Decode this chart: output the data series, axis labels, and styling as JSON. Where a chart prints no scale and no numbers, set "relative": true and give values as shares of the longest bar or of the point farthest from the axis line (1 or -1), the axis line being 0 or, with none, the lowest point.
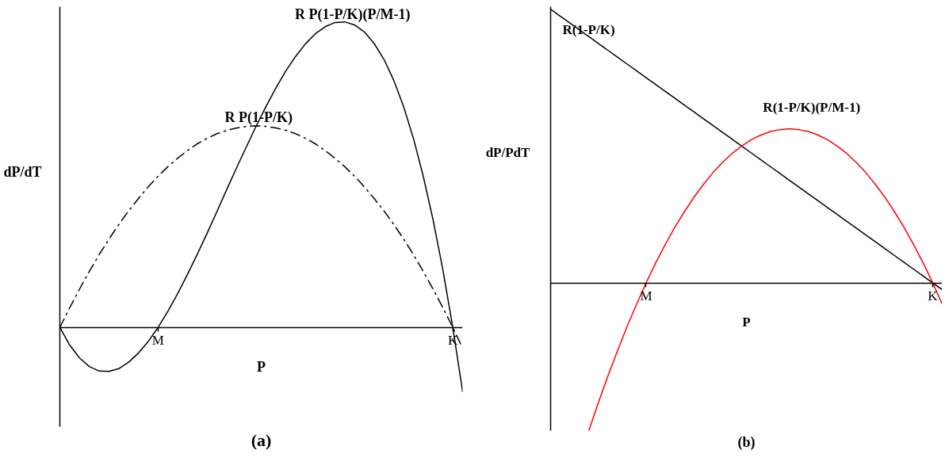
{
  "chart_data": [
    {
      "type": "line",
      "title": "(a)",
      "xlabel": "P",
      "ylabel": "dP/dT",
      "relative": true,
      "categories": [
        null,
        null,
        null,
        null,
        null,
        null,
        null,
        null,
        null,
        null,
        "M",
        null,
        null,
        null,
        null,
        null,
        null,
        null,
        null,
        null,
        null,
        null,
        null,
        null,
        null,
        null,
        null,
        null,
        null,
        null,
        null,
        null,
        null,
        null,
        null,
        null,
        null,
        null,
        null,
        null,
        "K",
        null
      ],
      "series": [
        {
          "name": "R P(1-P/K)(P/M-1)",
          "color": "#000000",
          "line_style": "solid",
          "values": [
            0,
            -0.058,
            -0.1,
            -0.128,
            -0.143,
            -0.144,
            -0.135,
            -0.114,
            -0.084,
            -0.046,
            0,
            0.053,
            0.111,
            0.174,
            0.24,
            0.309,
            0.38,
            0.452,
            0.523,
            0.592,
            0.66,
            0.724,
            0.784,
            0.839,
            0.887,
            0.928,
            0.961,
            0.984,
            0.998,
            1,
            0.99,
            0.967,
            0.929,
            0.877,
            0.808,
            0.722,
            0.618,
            0.494,
            0.351,
            0.187,
            0,
            -0.21
          ]
        },
        {
          "name": "R P(1-P/K)",
          "color": "#000000",
          "line_style": "dashdot",
          "values": [
            0,
            0.064,
            0.125,
            0.183,
            0.238,
            0.289,
            0.337,
            0.381,
            0.422,
            0.46,
            0.495,
            0.526,
            0.554,
            0.579,
            0.601,
            0.619,
            0.634,
            0.645,
            0.653,
            0.658,
            0.66,
            0.658,
            0.653,
            0.645,
            0.634,
            0.619,
            0.601,
            0.579,
            0.554,
            0.526,
            0.495,
            0.46,
            0.422,
            0.381,
            0.337,
            0.289,
            0.238,
            0.183,
            0.125,
            0.064,
            0,
            -0.068
          ]
        }
      ]
    },
    {
      "type": "line",
      "title": "(b)",
      "xlabel": "P",
      "ylabel": "dP/PdT",
      "relative": true,
      "categories": [
        null,
        null,
        null,
        null,
        null,
        null,
        null,
        null,
        null,
        null,
        "M",
        null,
        null,
        null,
        null,
        null,
        null,
        null,
        null,
        null,
        null,
        null,
        null,
        null,
        null,
        null,
        null,
        null,
        null,
        null,
        null,
        null,
        null,
        null,
        null,
        null,
        null,
        null,
        null,
        null,
        "K",
        null
      ],
      "series": [
        {
          "name": "R(1-P/K)",
          "color": "#000000",
          "line_style": "solid",
          "values": [
            1,
            0.975,
            0.95,
            0.925,
            0.9,
            0.875,
            0.85,
            0.825,
            0.8,
            0.775,
            0.75,
            0.725,
            0.7,
            0.675,
            0.65,
            0.625,
            0.6,
            0.575,
            0.55,
            0.525,
            0.5,
            0.475,
            0.45,
            0.425,
            0.4,
            0.375,
            0.35,
            0.325,
            0.3,
            0.275,
            0.25,
            0.225,
            0.2,
            0.175,
            0.15,
            0.125,
            0.1,
            0.075,
            0.05,
            0.025,
            0,
            -0.025
          ]
        },
        {
          "name": "R(1-P/K)(P/M-1)",
          "color": "#ff0000",
          "line_style": "solid",
          "values": [
            null,
            null,
            null,
            null,
            -0.54,
            -0.438,
            -0.34,
            -0.248,
            -0.16,
            -0.078,
            0,
            0.073,
            0.14,
            0.203,
            0.26,
            0.313,
            0.36,
            0.403,
            0.44,
            0.473,
            0.5,
            0.523,
            0.54,
            0.553,
            0.56,
            0.563,
            0.56,
            0.553,
            0.54,
            0.523,
            0.5,
            0.473,
            0.44,
            0.403,
            0.36,
            0.313,
            0.26,
            0.203,
            0.14,
            0.073,
            0,
            -0.078
          ]
        }
      ]
    }
  ]
}
